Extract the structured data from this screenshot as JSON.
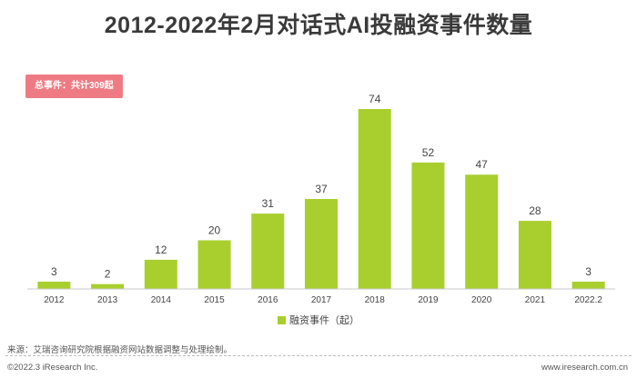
{
  "title": "2012-2022年2月对话式AI投融资事件数量",
  "badge": "总事件：共计309起",
  "source": "来源：艾瑞咨询研究院根据融资网站数据调整与处理绘制。",
  "footer": {
    "copyright": "©2022.3 iResearch Inc.",
    "url": "www.iresearch.com.cn"
  },
  "colors": {
    "bar": "#a8cf2e",
    "badge": "#ee7b84",
    "axis": "#c8c8c8",
    "label": "#444444"
  },
  "chart_data": {
    "type": "bar",
    "categories": [
      "2012",
      "2013",
      "2014",
      "2015",
      "2016",
      "2017",
      "2018",
      "2019",
      "2020",
      "2021",
      "2022.2"
    ],
    "series": [
      {
        "name": "融资事件（起）",
        "values": [
          3,
          2,
          12,
          20,
          31,
          37,
          74,
          52,
          47,
          28,
          3
        ]
      }
    ],
    "ylim": [
      0,
      74
    ],
    "grid": false,
    "legend_position": "bottom",
    "data_labels": true
  }
}
